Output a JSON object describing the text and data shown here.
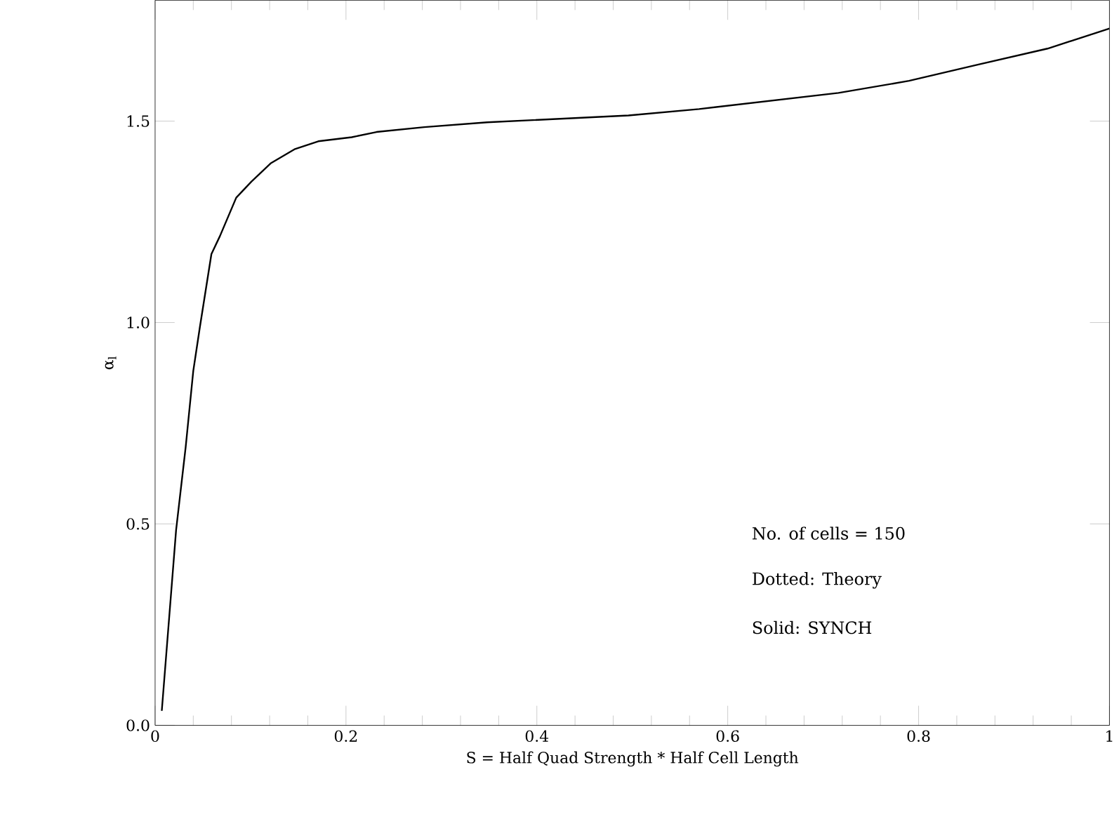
{
  "chart_data": {
    "type": "line",
    "xlabel": "S = Half Quad Strength * Half Cell Length",
    "ylabel": "α$_{l}$",
    "x": [
      0.007,
      0.022,
      0.032,
      0.04,
      0.047,
      0.059,
      0.068,
      0.085,
      0.101,
      0.121,
      0.146,
      0.171,
      0.206,
      0.232,
      0.282,
      0.348,
      0.496,
      0.57,
      0.716,
      0.79,
      0.862,
      0.935,
      1.0
    ],
    "series": [
      {
        "color": "#000000",
        "values": [
          0.036,
          0.485,
          0.69,
          0.88,
          0.99,
          1.17,
          1.215,
          1.31,
          1.35,
          1.395,
          1.43,
          1.45,
          1.46,
          1.473,
          1.485,
          1.497,
          1.514,
          1.53,
          1.57,
          1.6,
          1.64,
          1.68,
          1.73
        ]
      }
    ],
    "xlim": [
      0,
      1
    ],
    "ylim": [
      0,
      1.8
    ],
    "xticks": [
      0,
      0.2,
      0.4,
      0.6,
      0.8,
      1
    ],
    "yticks": [
      {
        "value": 0,
        "label": "0.0"
      },
      1.5,
      {
        "value": 1,
        "label": "1.0"
      },
      0.5
    ],
    "annotations": [
      "No. of cells = 150",
      "Dotted:  Theory",
      "Solid:    SYNCH"
    ],
    "marker": "none",
    "line_style": "solid"
  }
}
